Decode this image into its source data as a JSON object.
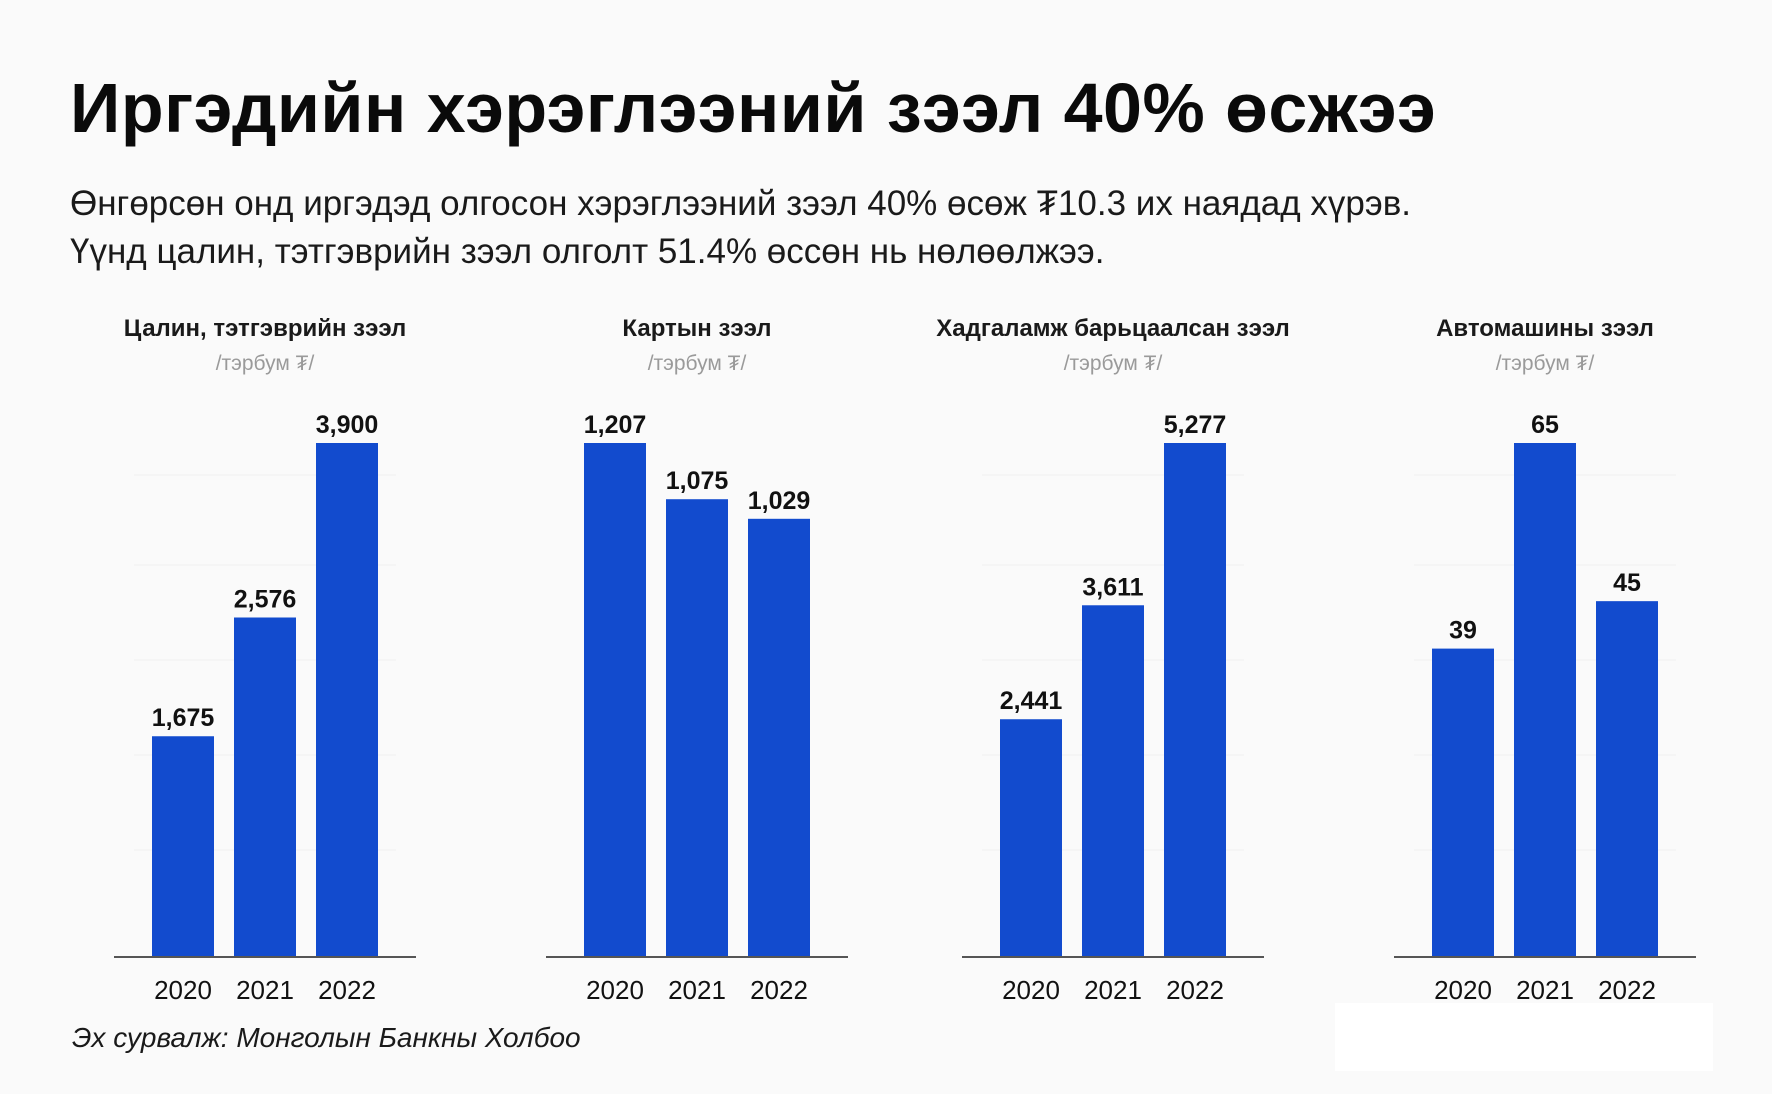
{
  "header": {
    "title": "Иргэдийн хэрэглээний зээл 40% өсжээ",
    "subtitle_line1": "Өнгөрсөн онд иргэдэд олгосон хэрэглээний зээл 40% өсөж ₮10.3 их наядад хүрэв.",
    "subtitle_line2": "Үүнд цалин, тэтгэврийн зээл олголт 51.4% өссөн нь нөлөөлжээ."
  },
  "footer": {
    "source": "Эх сурвалж: Монголын Банкны Холбоо"
  },
  "colors": {
    "bar": "#124bce",
    "background": "#fafafa"
  },
  "chart_data": [
    {
      "type": "bar",
      "title": "Цалин, тэтгэврийн зээл",
      "unit": "/тэрбум ₮/",
      "categories": [
        "2020",
        "2021",
        "2022"
      ],
      "values": [
        1675,
        2576,
        3900
      ],
      "value_labels": [
        "1,675",
        "2,576",
        "3,900"
      ],
      "ylim": [
        0,
        3900
      ],
      "grid": true
    },
    {
      "type": "bar",
      "title": "Картын зээл",
      "unit": "/тэрбум ₮/",
      "categories": [
        "2020",
        "2021",
        "2022"
      ],
      "values": [
        1207,
        1075,
        1029
      ],
      "value_labels": [
        "1,207",
        "1,075",
        "1,029"
      ],
      "ylim": [
        0,
        1207
      ],
      "grid": false
    },
    {
      "type": "bar",
      "title": "Хадгаламж барьцаалсан зээл",
      "unit": "/тэрбум ₮/",
      "categories": [
        "2020",
        "2021",
        "2022"
      ],
      "values": [
        2441,
        3611,
        5277
      ],
      "value_labels": [
        "2,441",
        "3,611",
        "5,277"
      ],
      "ylim": [
        0,
        5277
      ],
      "grid": true
    },
    {
      "type": "bar",
      "title": "Автомашины зээл",
      "unit": "/тэрбум ₮/",
      "categories": [
        "2020",
        "2021",
        "2022"
      ],
      "values": [
        39,
        65,
        45
      ],
      "value_labels": [
        "39",
        "65",
        "45"
      ],
      "ylim": [
        0,
        65
      ],
      "grid": true
    }
  ]
}
